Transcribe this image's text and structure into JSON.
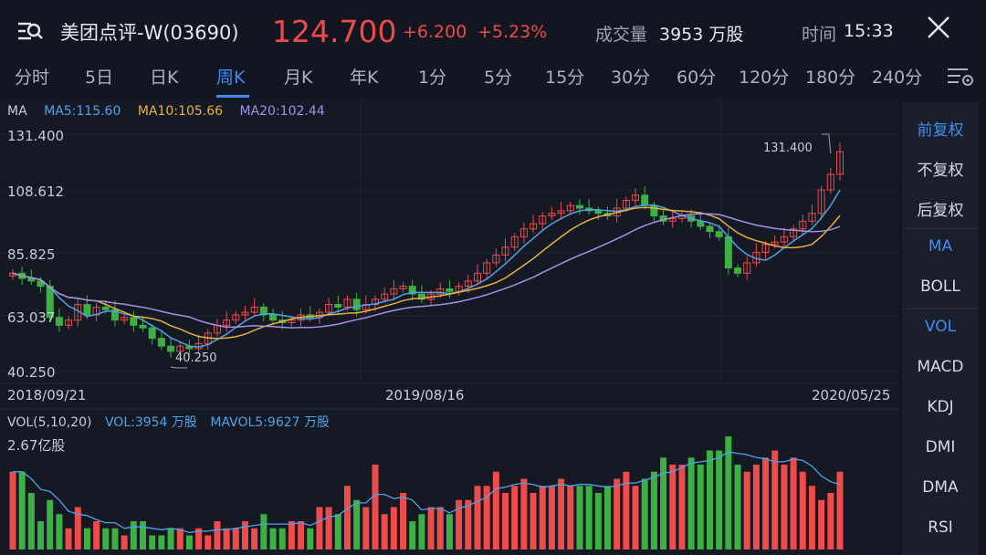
{
  "header": {
    "menu_icon": "menu-search-icon",
    "stock_name": "美团点评-W(03690)",
    "price": "124.700",
    "change": "+6.200",
    "change_pct": "+5.23%",
    "volume_label": "成交量",
    "volume_value": "3953 万股",
    "time_label": "时间",
    "time_value": "15:33",
    "close_icon": "close-icon"
  },
  "tabs": [
    {
      "label": "分时"
    },
    {
      "label": "5日"
    },
    {
      "label": "日K"
    },
    {
      "label": "周K",
      "active": true
    },
    {
      "label": "月K"
    },
    {
      "label": "年K"
    },
    {
      "label": "1分"
    },
    {
      "label": "5分"
    },
    {
      "label": "15分"
    },
    {
      "label": "30分"
    },
    {
      "label": "60分"
    },
    {
      "label": "120分"
    },
    {
      "label": "180分"
    },
    {
      "label": "240分"
    }
  ],
  "settings_icon": "chart-settings-icon",
  "legend": {
    "ma_label": "MA",
    "ma5": "MA5:115.60",
    "ma10": "MA10:105.66",
    "ma20": "MA20:102.44",
    "vol_label": "VOL(5,10,20)",
    "vol": "VOL:3954 万股",
    "mavol5": "MAVOL5:9627 万股"
  },
  "colors": {
    "up": "#ee4b4b",
    "down": "#3cb043",
    "ma5": "#4ea3e8",
    "ma10": "#e8b03c",
    "ma20": "#a88ee8",
    "accent": "#3f8cf4"
  },
  "chart_data": {
    "type": "candlestick",
    "y_ticks": [
      "131.400",
      "108.612",
      "85.825",
      "63.037",
      "40.250"
    ],
    "ylim": [
      40.25,
      131.4
    ],
    "x_labels": [
      "2018/09/21",
      "2019/08/16",
      "2020/05/25"
    ],
    "high_marker": "131.400",
    "low_marker": "40.250",
    "vol_max_label": "2.67亿股",
    "closes": [
      78,
      76,
      75,
      73,
      61,
      58,
      60,
      66,
      62,
      65,
      64,
      60,
      61,
      58,
      57,
      53,
      50,
      48,
      50,
      49,
      51,
      55,
      58,
      60,
      62,
      63,
      65,
      62,
      60,
      59,
      60,
      62,
      61,
      63,
      66,
      65,
      68,
      64,
      66,
      68,
      70,
      72,
      73,
      70,
      68,
      70,
      72,
      71,
      73,
      75,
      78,
      82,
      85,
      88,
      92,
      95,
      97,
      100,
      101,
      102,
      104,
      103,
      102,
      101,
      100,
      103,
      106,
      108,
      104,
      100,
      98,
      99,
      100,
      98,
      96,
      94,
      92,
      80,
      78,
      82,
      86,
      89,
      90,
      92,
      95,
      98,
      101,
      110,
      116,
      124.7
    ],
    "ma5": "drawn from chart",
    "volumes": [
      11,
      11,
      8,
      4,
      7,
      5,
      3,
      6,
      3,
      4,
      3,
      3,
      2,
      4,
      4,
      2,
      2,
      3,
      3,
      2,
      3,
      2,
      4,
      3,
      3,
      4,
      3,
      5,
      3,
      3,
      4,
      4,
      3,
      6,
      6,
      5,
      9,
      7,
      6,
      12,
      5,
      6,
      8,
      4,
      5,
      6,
      6,
      5,
      7,
      7,
      9,
      9,
      11,
      8,
      9,
      10,
      8,
      9,
      9,
      10,
      9,
      9,
      9,
      8,
      9,
      10,
      11,
      9,
      10,
      11,
      13,
      12,
      12,
      13,
      12,
      14,
      14,
      16,
      12,
      11,
      12,
      13,
      14,
      12,
      13,
      11,
      9,
      7,
      8,
      11
    ]
  },
  "right_panel": {
    "items": [
      {
        "label": "前复权",
        "active": true
      },
      {
        "label": "不复权"
      },
      {
        "label": "后复权"
      },
      {
        "label": "MA",
        "active": true
      },
      {
        "label": "BOLL"
      },
      {
        "label": "VOL",
        "active": true
      },
      {
        "label": "MACD"
      },
      {
        "label": "KDJ"
      },
      {
        "label": "DMI"
      },
      {
        "label": "DMA"
      },
      {
        "label": "RSI"
      }
    ]
  }
}
